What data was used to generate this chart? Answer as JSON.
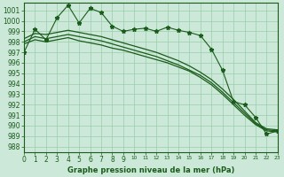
{
  "xlabel": "Graphe pression niveau de la mer (hPa)",
  "background_color": "#cce8d8",
  "grid_color": "#99ccaa",
  "line_color": "#1a5c1a",
  "xlim": [
    0,
    23
  ],
  "ylim": [
    987.5,
    1001.7
  ],
  "yticks": [
    988,
    989,
    990,
    991,
    992,
    993,
    994,
    995,
    996,
    997,
    998,
    999,
    1000,
    1001
  ],
  "xticks": [
    0,
    1,
    2,
    3,
    4,
    5,
    6,
    7,
    8,
    9,
    10,
    11,
    12,
    13,
    14,
    15,
    16,
    17,
    18,
    19,
    20,
    21,
    22,
    23
  ],
  "main_data": [
    997.0,
    999.2,
    998.2,
    1000.3,
    1001.5,
    999.8,
    1001.2,
    1000.8,
    999.5,
    999.0,
    999.2,
    999.3,
    999.0,
    999.4,
    999.1,
    998.9,
    998.6,
    997.3,
    995.3,
    992.3,
    992.0,
    990.8,
    989.2,
    989.5
  ],
  "linear1": [
    997.8,
    998.2,
    998.0,
    998.2,
    998.4,
    998.1,
    997.9,
    997.7,
    997.4,
    997.2,
    996.9,
    996.6,
    996.3,
    996.0,
    995.6,
    995.2,
    994.6,
    993.9,
    993.0,
    992.0,
    991.0,
    990.1,
    989.5,
    989.4
  ],
  "linear2": [
    998.0,
    998.5,
    998.3,
    998.5,
    998.7,
    998.5,
    998.3,
    998.1,
    997.8,
    997.5,
    997.2,
    996.9,
    996.6,
    996.2,
    995.8,
    995.3,
    994.8,
    994.1,
    993.2,
    992.2,
    991.2,
    990.2,
    989.6,
    989.5
  ],
  "linear3": [
    998.3,
    998.8,
    998.7,
    998.9,
    999.1,
    998.9,
    998.7,
    998.5,
    998.2,
    997.9,
    997.6,
    997.3,
    997.0,
    996.6,
    996.2,
    995.7,
    995.1,
    994.4,
    993.5,
    992.5,
    991.4,
    990.3,
    989.7,
    989.6
  ]
}
